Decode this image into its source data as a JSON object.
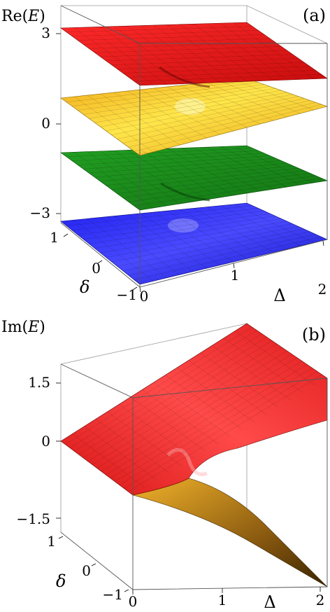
{
  "chart_data": [
    {
      "type": "surface3d",
      "panel_label": "(a)",
      "zlabel": {
        "prefix": "Re(",
        "var": "E",
        "suffix": ")"
      },
      "xlabel": "Δ",
      "ylabel": "δ",
      "x_ticks": [
        "0",
        "1",
        "2"
      ],
      "y_ticks": [
        "1",
        "0",
        "−1"
      ],
      "z_ticks": [
        "3",
        "0",
        "−3"
      ],
      "xlim": [
        0,
        2
      ],
      "ylim": [
        -1,
        1
      ],
      "zlim": [
        -3.5,
        3.5
      ],
      "grid": false,
      "box": true,
      "series": [
        {
          "color": "#e8191b",
          "level_at_corners": {
            "back_left": 3.0,
            "back_right": 1.9,
            "front_left": 1.7,
            "front_right": 1.0
          },
          "feature": "exceptional-point dip near Δ=1, δ=0"
        },
        {
          "color": "#f7b71c",
          "level_at_corners": {
            "back_left": 1.0,
            "back_right": 0.8,
            "front_left": 0.9,
            "front_right": 0.1
          },
          "feature": "exceptional-point peak near Δ=1, δ=0"
        },
        {
          "color": "#1a8a1a",
          "level_at_corners": {
            "back_left": -1.0,
            "back_right": -0.6,
            "front_left": -1.4,
            "front_right": -1.7
          },
          "feature": "exceptional-point dip near Δ=1, δ=0"
        },
        {
          "color": "#1a1ae6",
          "level_at_corners": {
            "back_left": -3.0,
            "back_right": -2.2,
            "front_left": -3.0,
            "front_right": -3.2
          },
          "feature": "exceptional-point peak near Δ=1, δ=0"
        }
      ]
    },
    {
      "type": "surface3d",
      "panel_label": "(b)",
      "zlabel": {
        "prefix": "Im(",
        "var": "E",
        "suffix": ")"
      },
      "xlabel": "Δ",
      "ylabel": "δ",
      "x_ticks": [
        "0",
        "1",
        "2"
      ],
      "y_ticks": [
        "1",
        "0",
        "−1"
      ],
      "z_ticks": [
        "1.5",
        "0",
        "−1.5"
      ],
      "xlim": [
        0,
        2
      ],
      "ylim": [
        -1,
        1
      ],
      "zlim": [
        -1.8,
        1.8
      ],
      "grid": false,
      "box": true,
      "series": [
        {
          "color": "#e8191b",
          "level_at_corners": {
            "back_left": 0.0,
            "back_right": 1.6,
            "front_left": 0.0,
            "front_right": 1.7
          },
          "feature": "rises linearly with Δ, ridge near Δ=1, δ=0"
        },
        {
          "color": "#d99a1c",
          "level_at_corners": {
            "back_left": 0.0,
            "back_right": -1.6,
            "front_left": 0.0,
            "front_right": -1.7
          },
          "feature": "mirror sheet falling linearly with Δ"
        }
      ]
    }
  ]
}
